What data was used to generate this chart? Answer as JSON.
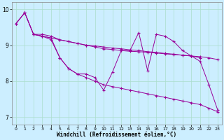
{
  "xlabel": "Windchill (Refroidissement éolien,°C)",
  "x": [
    0,
    1,
    2,
    3,
    4,
    5,
    6,
    7,
    8,
    9,
    10,
    11,
    12,
    13,
    14,
    15,
    16,
    17,
    18,
    19,
    20,
    21,
    22,
    23
  ],
  "line1_x": [
    0,
    1,
    2,
    3,
    4,
    5,
    6,
    7,
    8,
    9,
    10,
    11,
    12,
    13,
    14,
    15,
    16,
    17,
    18,
    19,
    20,
    21
  ],
  "line1_y": [
    9.6,
    9.9,
    9.3,
    9.25,
    9.2,
    9.15,
    9.1,
    9.05,
    9.0,
    8.98,
    8.95,
    8.92,
    8.9,
    8.87,
    8.85,
    8.82,
    8.8,
    8.77,
    8.75,
    8.72,
    8.7,
    8.65
  ],
  "line2_x": [
    2,
    3,
    4,
    5,
    6,
    7,
    8,
    9,
    10,
    11,
    12,
    13,
    14,
    15,
    16,
    17,
    18,
    19,
    20,
    21,
    22,
    23
  ],
  "line2_y": [
    9.3,
    9.3,
    9.25,
    9.15,
    9.1,
    9.05,
    9.0,
    8.95,
    8.9,
    8.88,
    8.85,
    8.83,
    8.82,
    8.8,
    8.78,
    8.76,
    8.74,
    8.72,
    8.7,
    8.68,
    8.65,
    8.6
  ],
  "line3_x": [
    0,
    1,
    2,
    3,
    4,
    5,
    6,
    7,
    8,
    9,
    10,
    11,
    12,
    13,
    14,
    15,
    16,
    17,
    18,
    19,
    20,
    21,
    22,
    23
  ],
  "line3_y": [
    9.6,
    9.9,
    9.3,
    9.25,
    9.15,
    8.65,
    8.35,
    8.2,
    8.2,
    8.1,
    7.75,
    8.25,
    8.85,
    8.85,
    9.35,
    8.3,
    9.3,
    9.25,
    9.1,
    8.85,
    8.7,
    8.55,
    7.9,
    7.2
  ],
  "line4_x": [
    0,
    1,
    2,
    3,
    4,
    5,
    6,
    7,
    8,
    9,
    10,
    11,
    12,
    13,
    14,
    15,
    16,
    17,
    18,
    19,
    20,
    21,
    22,
    23
  ],
  "line4_y": [
    9.6,
    9.9,
    9.3,
    9.25,
    9.2,
    8.65,
    8.35,
    8.2,
    8.1,
    8.0,
    7.9,
    7.85,
    7.8,
    7.75,
    7.7,
    7.65,
    7.6,
    7.55,
    7.5,
    7.45,
    7.4,
    7.35,
    7.25,
    7.15
  ],
  "ylim": [
    6.8,
    10.2
  ],
  "yticks": [
    7,
    8,
    9,
    10
  ],
  "xticks": [
    0,
    1,
    2,
    3,
    4,
    5,
    6,
    7,
    8,
    9,
    10,
    11,
    12,
    13,
    14,
    15,
    16,
    17,
    18,
    19,
    20,
    21,
    22,
    23
  ],
  "line_color": "#990099",
  "bg_color": "#cceeff",
  "grid_color": "#aaddcc",
  "linewidth": 0.7,
  "markersize": 3.5
}
